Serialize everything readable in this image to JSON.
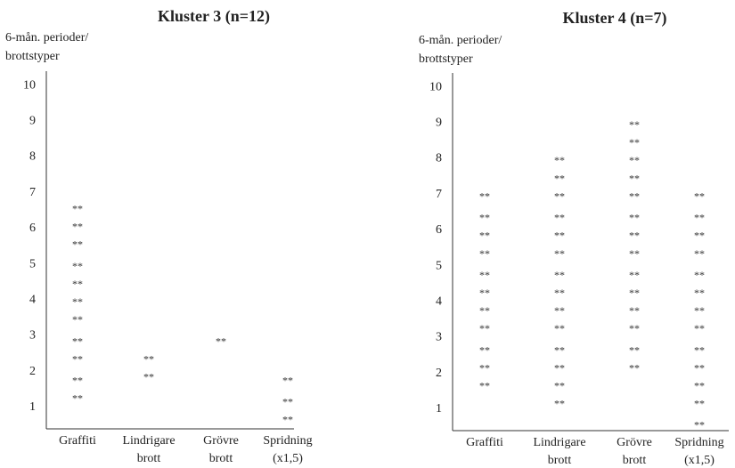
{
  "chart_data": [
    {
      "type": "dot",
      "title": "Kluster 3 (n=12)",
      "y_label": [
        "6-mån. perioder/",
        "brottstyper"
      ],
      "marker": "**",
      "categories": [
        [
          "Graffiti"
        ],
        [
          "Lindrigare",
          "brott"
        ],
        [
          "Grövre",
          "brott"
        ],
        [
          "Spridning",
          "(x1,5)"
        ]
      ],
      "values": [
        [
          1.3,
          1.8,
          2.4,
          2.9,
          3.5,
          4.0,
          4.5,
          5.0,
          5.6,
          6.1,
          6.6
        ],
        [
          1.9,
          2.4
        ],
        [
          2.9
        ],
        [
          0.7,
          1.2,
          1.8
        ]
      ],
      "ylim": [
        0.4,
        10.4
      ],
      "yticks": [
        1,
        2,
        3,
        4,
        5,
        6,
        7,
        8,
        9,
        10
      ]
    },
    {
      "type": "dot",
      "title": "Kluster 4 (n=7)",
      "y_label": [
        "6-mån. perioder/",
        "brottstyper"
      ],
      "marker": "**",
      "categories": [
        [
          "Graffiti"
        ],
        [
          "Lindrigare",
          "brott"
        ],
        [
          "Grövre",
          "brott"
        ],
        [
          "Spridning",
          "(x1,5)"
        ]
      ],
      "values": [
        [
          1.7,
          2.2,
          2.7,
          3.3,
          3.8,
          4.3,
          4.8,
          5.4,
          5.9,
          6.4,
          7.0
        ],
        [
          1.2,
          1.7,
          2.2,
          2.7,
          3.3,
          3.8,
          4.3,
          4.8,
          5.4,
          5.9,
          6.4,
          7.0,
          7.5,
          8.0
        ],
        [
          2.2,
          2.7,
          3.3,
          3.8,
          4.3,
          4.8,
          5.4,
          5.9,
          6.4,
          7.0,
          7.5,
          8.0,
          8.5,
          9.0
        ],
        [
          0.6,
          1.2,
          1.7,
          2.2,
          2.7,
          3.3,
          3.8,
          4.3,
          4.8,
          5.4,
          5.9,
          6.4,
          7.0
        ]
      ],
      "ylim": [
        0.4,
        10.4
      ],
      "yticks": [
        1,
        2,
        3,
        4,
        5,
        6,
        7,
        8,
        9,
        10
      ]
    }
  ]
}
